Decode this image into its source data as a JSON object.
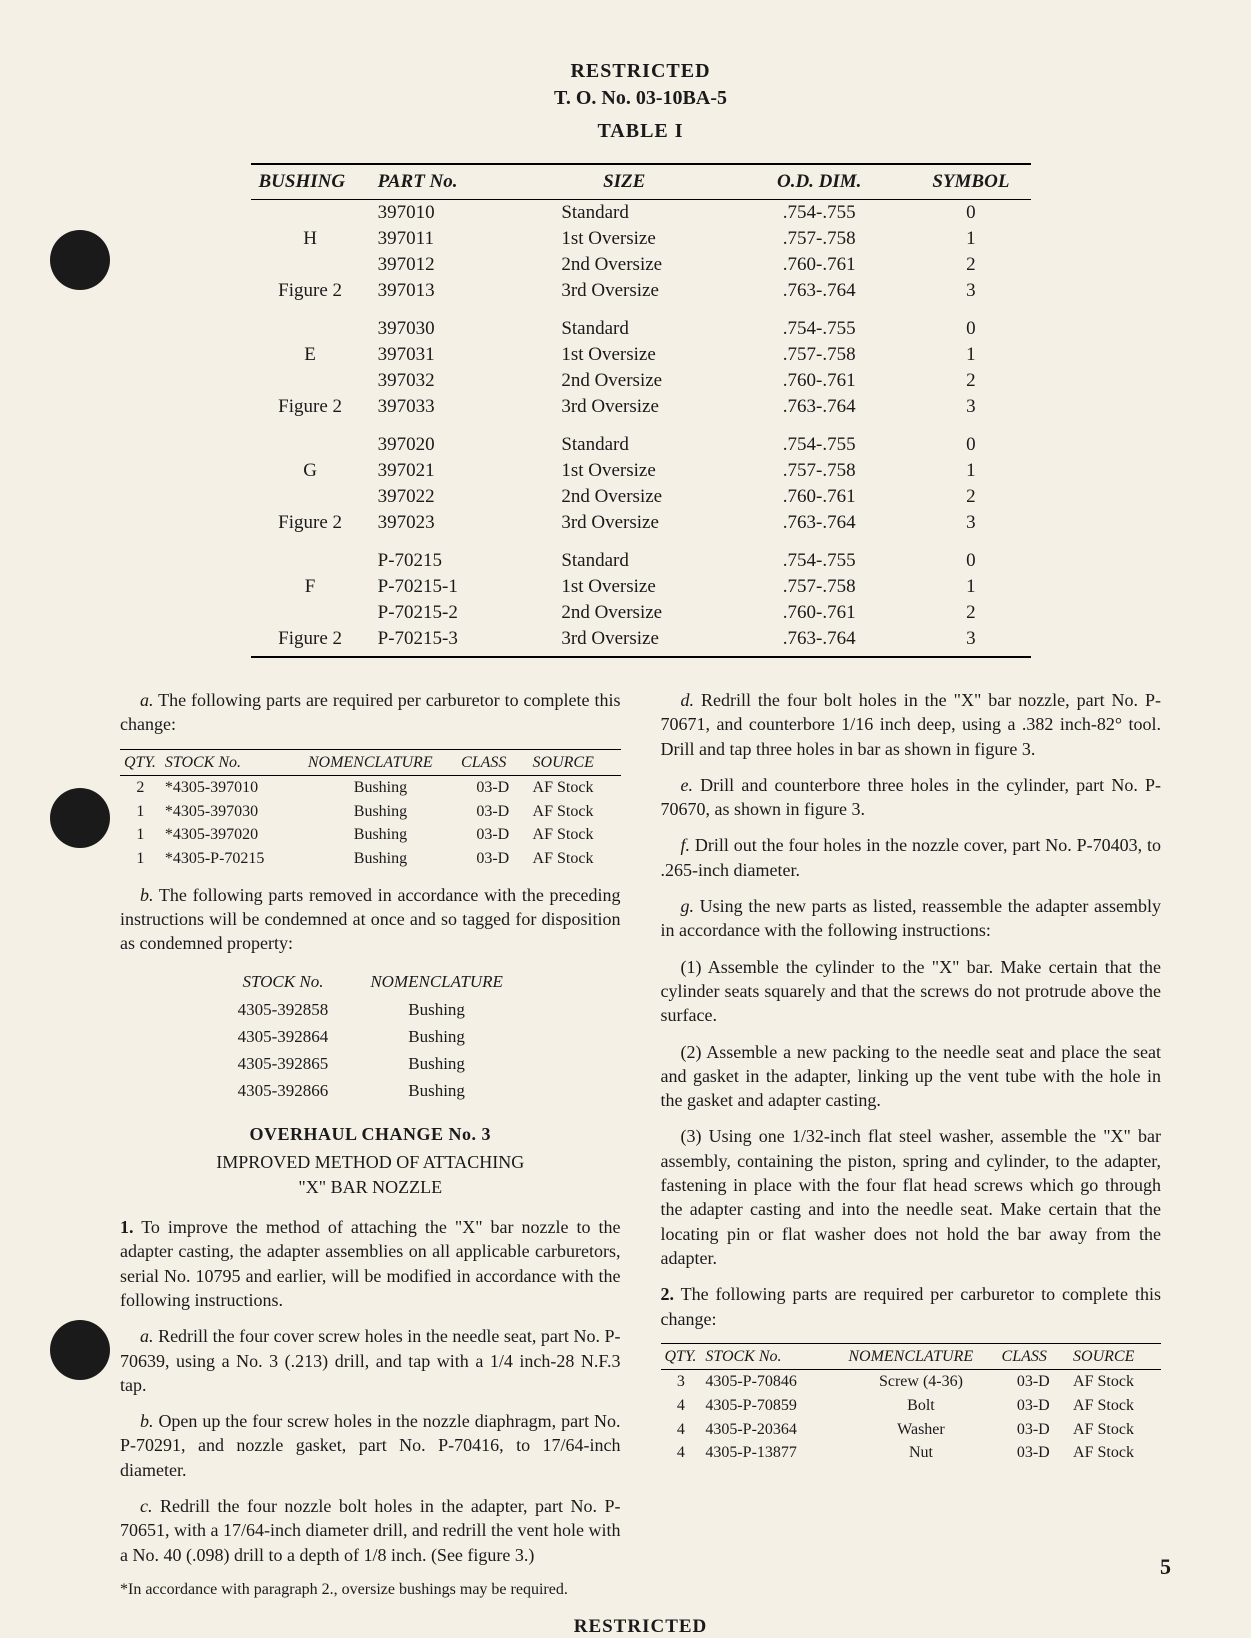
{
  "header": {
    "restricted": "RESTRICTED",
    "to_number": "T. O. No. 03-10BA-5",
    "table_title": "TABLE I"
  },
  "table1": {
    "headers": {
      "bushing": "BUSHING",
      "partno": "PART No.",
      "size": "SIZE",
      "oddim": "O.D. DIM.",
      "symbol": "SYMBOL"
    },
    "groups": [
      {
        "label": "H",
        "fig": "Figure 2",
        "rows": [
          {
            "partno": "397010",
            "size": "Standard",
            "dim": ".754-.755",
            "sym": "0"
          },
          {
            "partno": "397011",
            "size": "1st Oversize",
            "dim": ".757-.758",
            "sym": "1"
          },
          {
            "partno": "397012",
            "size": "2nd Oversize",
            "dim": ".760-.761",
            "sym": "2"
          },
          {
            "partno": "397013",
            "size": "3rd Oversize",
            "dim": ".763-.764",
            "sym": "3"
          }
        ]
      },
      {
        "label": "E",
        "fig": "Figure 2",
        "rows": [
          {
            "partno": "397030",
            "size": "Standard",
            "dim": ".754-.755",
            "sym": "0"
          },
          {
            "partno": "397031",
            "size": "1st Oversize",
            "dim": ".757-.758",
            "sym": "1"
          },
          {
            "partno": "397032",
            "size": "2nd Oversize",
            "dim": ".760-.761",
            "sym": "2"
          },
          {
            "partno": "397033",
            "size": "3rd Oversize",
            "dim": ".763-.764",
            "sym": "3"
          }
        ]
      },
      {
        "label": "G",
        "fig": "Figure 2",
        "rows": [
          {
            "partno": "397020",
            "size": "Standard",
            "dim": ".754-.755",
            "sym": "0"
          },
          {
            "partno": "397021",
            "size": "1st Oversize",
            "dim": ".757-.758",
            "sym": "1"
          },
          {
            "partno": "397022",
            "size": "2nd Oversize",
            "dim": ".760-.761",
            "sym": "2"
          },
          {
            "partno": "397023",
            "size": "3rd Oversize",
            "dim": ".763-.764",
            "sym": "3"
          }
        ]
      },
      {
        "label": "F",
        "fig": "Figure 2",
        "rows": [
          {
            "partno": "P-70215",
            "size": "Standard",
            "dim": ".754-.755",
            "sym": "0"
          },
          {
            "partno": "P-70215-1",
            "size": "1st Oversize",
            "dim": ".757-.758",
            "sym": "1"
          },
          {
            "partno": "P-70215-2",
            "size": "2nd Oversize",
            "dim": ".760-.761",
            "sym": "2"
          },
          {
            "partno": "P-70215-3",
            "size": "3rd Oversize",
            "dim": ".763-.764",
            "sym": "3"
          }
        ]
      }
    ]
  },
  "left_col": {
    "para_a": "a. The following parts are required per carburetor to complete this change:",
    "parts_table": {
      "headers": {
        "qty": "QTY.",
        "stock": "STOCK No.",
        "nomen": "NOMENCLATURE",
        "cls": "CLASS",
        "src": "SOURCE"
      },
      "rows": [
        {
          "qty": "2",
          "stock": "*4305-397010",
          "nomen": "Bushing",
          "cls": "03-D",
          "src": "AF Stock"
        },
        {
          "qty": "1",
          "stock": "*4305-397030",
          "nomen": "Bushing",
          "cls": "03-D",
          "src": "AF Stock"
        },
        {
          "qty": "1",
          "stock": "*4305-397020",
          "nomen": "Bushing",
          "cls": "03-D",
          "src": "AF Stock"
        },
        {
          "qty": "1",
          "stock": "*4305-P-70215",
          "nomen": "Bushing",
          "cls": "03-D",
          "src": "AF Stock"
        }
      ]
    },
    "para_b": "b. The following parts removed in accordance with the preceding instructions will be condemned at once and so tagged for disposition as condemned property:",
    "condemned": {
      "headers": {
        "stock": "STOCK No.",
        "nomen": "NOMENCLATURE"
      },
      "rows": [
        {
          "stock": "4305-392858",
          "nomen": "Bushing"
        },
        {
          "stock": "4305-392864",
          "nomen": "Bushing"
        },
        {
          "stock": "4305-392865",
          "nomen": "Bushing"
        },
        {
          "stock": "4305-392866",
          "nomen": "Bushing"
        }
      ]
    },
    "change_heading": "OVERHAUL CHANGE No. 3",
    "change_sub1": "IMPROVED METHOD OF ATTACHING",
    "change_sub2": "\"X\" BAR NOZZLE",
    "para_1": "1. To improve the method of attaching the \"X\" bar nozzle to the adapter casting, the adapter assemblies on all applicable carburetors, serial No. 10795 and earlier, will be modified in accordance with the following instructions.",
    "para_1a": "a. Redrill the four cover screw holes in the needle seat, part No. P-70639, using a No. 3 (.213) drill, and tap with a 1/4 inch-28 N.F.3 tap.",
    "para_1b": "b. Open up the four screw holes in the nozzle diaphragm, part No. P-70291, and nozzle gasket, part No. P-70416, to 17/64-inch diameter.",
    "para_1c": "c. Redrill the four nozzle bolt holes in the adapter, part No. P-70651, with a 17/64-inch diameter drill, and redrill the vent hole with a No. 40 (.098) drill to a depth of 1/8 inch. (See figure 3.)",
    "footnote": "*In accordance with paragraph 2., oversize bushings may be required."
  },
  "right_col": {
    "para_d": "d. Redrill the four bolt holes in the \"X\" bar nozzle, part No. P-70671, and counterbore 1/16 inch deep, using a .382 inch-82° tool. Drill and tap three holes in bar as shown in figure 3.",
    "para_e": "e. Drill and counterbore three holes in the cylinder, part No. P-70670, as shown in figure 3.",
    "para_f": "f. Drill out the four holes in the nozzle cover, part No. P-70403, to .265-inch diameter.",
    "para_g": "g. Using the new parts as listed, reassemble the adapter assembly in accordance with the following instructions:",
    "para_g1": "(1) Assemble the cylinder to the \"X\" bar. Make certain that the cylinder seats squarely and that the screws do not protrude above the surface.",
    "para_g2": "(2) Assemble a new packing to the needle seat and place the seat and gasket in the adapter, linking up the vent tube with the hole in the gasket and adapter casting.",
    "para_g3": "(3) Using one 1/32-inch flat steel washer, assemble the \"X\" bar assembly, containing the piston, spring and cylinder, to the adapter, fastening in place with the four flat head screws which go through the adapter casting and into the needle seat. Make certain that the locating pin or flat washer does not hold the bar away from the adapter.",
    "para_2": "2. The following parts are required per carburetor to complete this change:",
    "parts_table": {
      "headers": {
        "qty": "QTY.",
        "stock": "STOCK No.",
        "nomen": "NOMENCLATURE",
        "cls": "CLASS",
        "src": "SOURCE"
      },
      "rows": [
        {
          "qty": "3",
          "stock": "4305-P-70846",
          "nomen": "Screw (4-36)",
          "cls": "03-D",
          "src": "AF Stock"
        },
        {
          "qty": "4",
          "stock": "4305-P-70859",
          "nomen": "Bolt",
          "cls": "03-D",
          "src": "AF Stock"
        },
        {
          "qty": "4",
          "stock": "4305-P-20364",
          "nomen": "Washer",
          "cls": "03-D",
          "src": "AF Stock"
        },
        {
          "qty": "4",
          "stock": "4305-P-13877",
          "nomen": "Nut",
          "cls": "03-D",
          "src": "AF Stock"
        }
      ]
    }
  },
  "footer": {
    "restricted": "RESTRICTED",
    "page": "5"
  }
}
